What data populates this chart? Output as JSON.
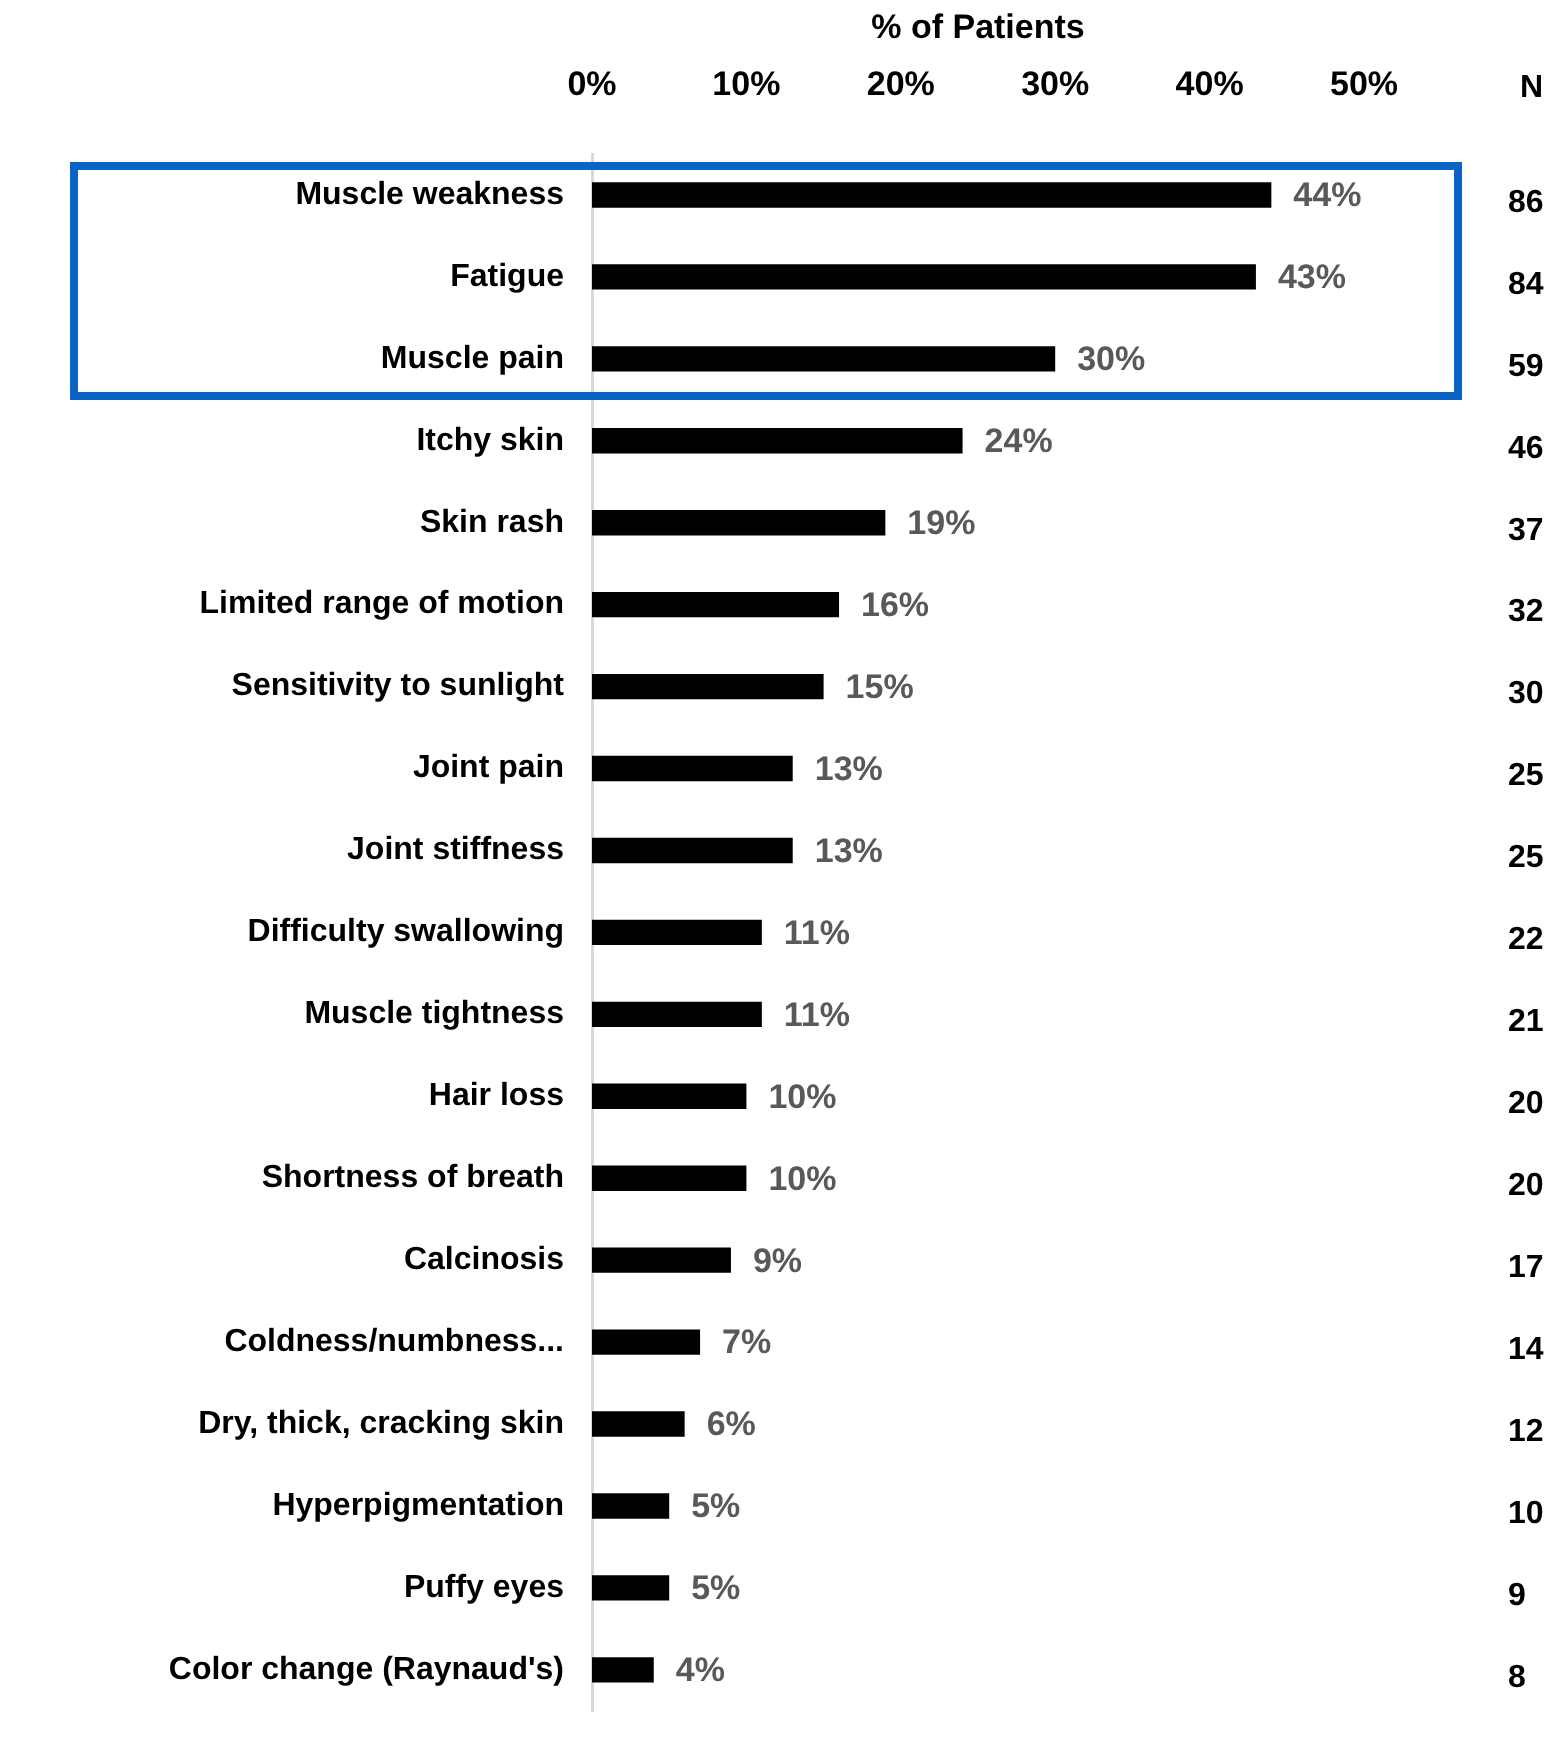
{
  "chart_data": {
    "type": "bar",
    "orientation": "horizontal",
    "xlabel": "% of Patients",
    "categories": [
      "Muscle weakness",
      "Fatigue",
      "Muscle pain",
      "Itchy skin",
      "Skin rash",
      "Limited range of motion",
      "Sensitivity to sunlight",
      "Joint pain",
      "Joint stiffness",
      "Difficulty swallowing",
      "Muscle tightness",
      "Hair loss",
      "Shortness of breath",
      "Calcinosis",
      "Coldness/numbness...",
      "Dry, thick, cracking skin",
      "Hyperpigmentation",
      "Puffy eyes",
      "Color change (Raynaud's)"
    ],
    "values": [
      44,
      43,
      30,
      24,
      19,
      16,
      15,
      13,
      13,
      11,
      11,
      10,
      10,
      9,
      7,
      6,
      5,
      5,
      4
    ],
    "color": "#000000",
    "value_labels": [
      "44%",
      "43%",
      "30%",
      "24%",
      "19%",
      "16%",
      "15%",
      "13%",
      "13%",
      "11%",
      "11%",
      "10%",
      "10%",
      "9%",
      "7%",
      "6%",
      "5%",
      "5%",
      "4%"
    ],
    "xlim": [
      0,
      50
    ],
    "xticks": [
      {
        "value": 0,
        "label": "0%"
      },
      {
        "value": 10,
        "label": "10%"
      },
      {
        "value": 20,
        "label": "20%"
      },
      {
        "value": 30,
        "label": "30%"
      },
      {
        "value": 40,
        "label": "40%"
      },
      {
        "value": 50,
        "label": "50%"
      }
    ],
    "annotations": [
      "N",
      "86",
      "84",
      "59",
      "46",
      "37",
      "32",
      "30",
      "25",
      "25",
      "22",
      "21",
      "20",
      "20",
      "17",
      "14",
      "12",
      "10",
      "9",
      "8"
    ]
  }
}
